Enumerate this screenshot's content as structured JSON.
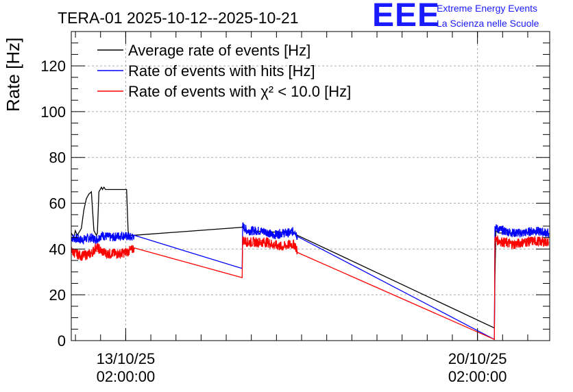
{
  "chart_data": {
    "type": "line",
    "title": "TERA-01 2025-10-12--2025-10-21",
    "ylabel": "Rate [Hz]",
    "xlabel": "",
    "ylim": [
      0,
      135
    ],
    "yticks": [
      0,
      20,
      40,
      60,
      80,
      100,
      120
    ],
    "x_unit": "days since 2025-10-12 00:00",
    "xlim": [
      0,
      9.52
    ],
    "xticks": [
      {
        "x": 1.083,
        "line1": "13/10/25",
        "line2": "02:00:00"
      },
      {
        "x": 8.083,
        "line1": "20/10/25",
        "line2": "02:00:00"
      }
    ],
    "grid": true,
    "legend_position": "top-left",
    "series": [
      {
        "name": "Average rate of events [Hz]",
        "color": "#000000",
        "x": [
          0.0,
          0.05,
          0.08,
          0.12,
          0.2,
          0.25,
          0.3,
          0.35,
          0.4,
          0.45,
          0.5,
          0.52,
          0.55,
          0.6,
          0.62,
          0.65,
          0.68,
          0.7,
          0.75,
          0.8,
          0.9,
          1.0,
          1.1,
          1.13,
          1.15,
          1.2,
          1.25,
          3.4,
          3.41,
          3.45,
          4.45,
          4.5,
          8.42,
          8.43,
          8.45,
          8.5,
          8.6,
          9.5
        ],
        "y": [
          47,
          45,
          48,
          46,
          49,
          57,
          62,
          64,
          65,
          48,
          46,
          47,
          65,
          67,
          66,
          67,
          66,
          66,
          66,
          66,
          66,
          66,
          66,
          48,
          46,
          46,
          46,
          49.5,
          50,
          48,
          47,
          46,
          5.5,
          28,
          48,
          47,
          47,
          47
        ]
      },
      {
        "name": "Rate of events with hits [Hz]",
        "color": "#0000ff",
        "x": [
          0.0,
          0.2,
          0.4,
          0.5,
          0.6,
          0.8,
          1.0,
          1.2,
          1.25,
          3.4,
          3.41,
          3.5,
          3.7,
          3.9,
          4.0,
          4.2,
          4.35,
          4.45,
          4.5,
          8.42,
          8.43,
          8.45,
          8.6,
          8.8,
          9.0,
          9.2,
          9.5
        ],
        "y": [
          45,
          44,
          45,
          44,
          46,
          45,
          46,
          45,
          46,
          31.5,
          50,
          48,
          48,
          47.5,
          46,
          47,
          47,
          48,
          45.5,
          0.5,
          50,
          49,
          48,
          47,
          47,
          48,
          47
        ],
        "noise": 2.0
      },
      {
        "name": "Rate of events with χ² < 10.0 [Hz]",
        "color": "#ff0000",
        "x": [
          0.0,
          0.2,
          0.3,
          0.4,
          0.5,
          0.6,
          0.7,
          0.8,
          1.0,
          1.2,
          1.25,
          3.4,
          3.41,
          3.5,
          3.7,
          3.9,
          4.0,
          4.2,
          4.35,
          4.45,
          4.5,
          8.42,
          8.43,
          8.45,
          8.6,
          8.8,
          9.0,
          9.2,
          9.5
        ],
        "y": [
          39,
          37,
          37.5,
          38,
          41,
          39,
          38,
          38,
          38,
          39.5,
          40.5,
          27.5,
          44,
          43,
          43,
          43,
          42,
          41,
          42,
          42,
          38.5,
          0.5,
          45,
          44,
          43,
          42,
          43,
          43.5,
          43
        ],
        "noise": 2.2
      }
    ],
    "legend_entries": [
      "Average rate of events [Hz]",
      "Rate of events with hits [Hz]",
      "Rate of events with χ² < 10.0 [Hz]"
    ]
  },
  "logo": {
    "mark": "EEE",
    "line1": "Extreme Energy Events",
    "line2": "La Scienza nelle Scuole",
    "color": "#1a1aff"
  }
}
